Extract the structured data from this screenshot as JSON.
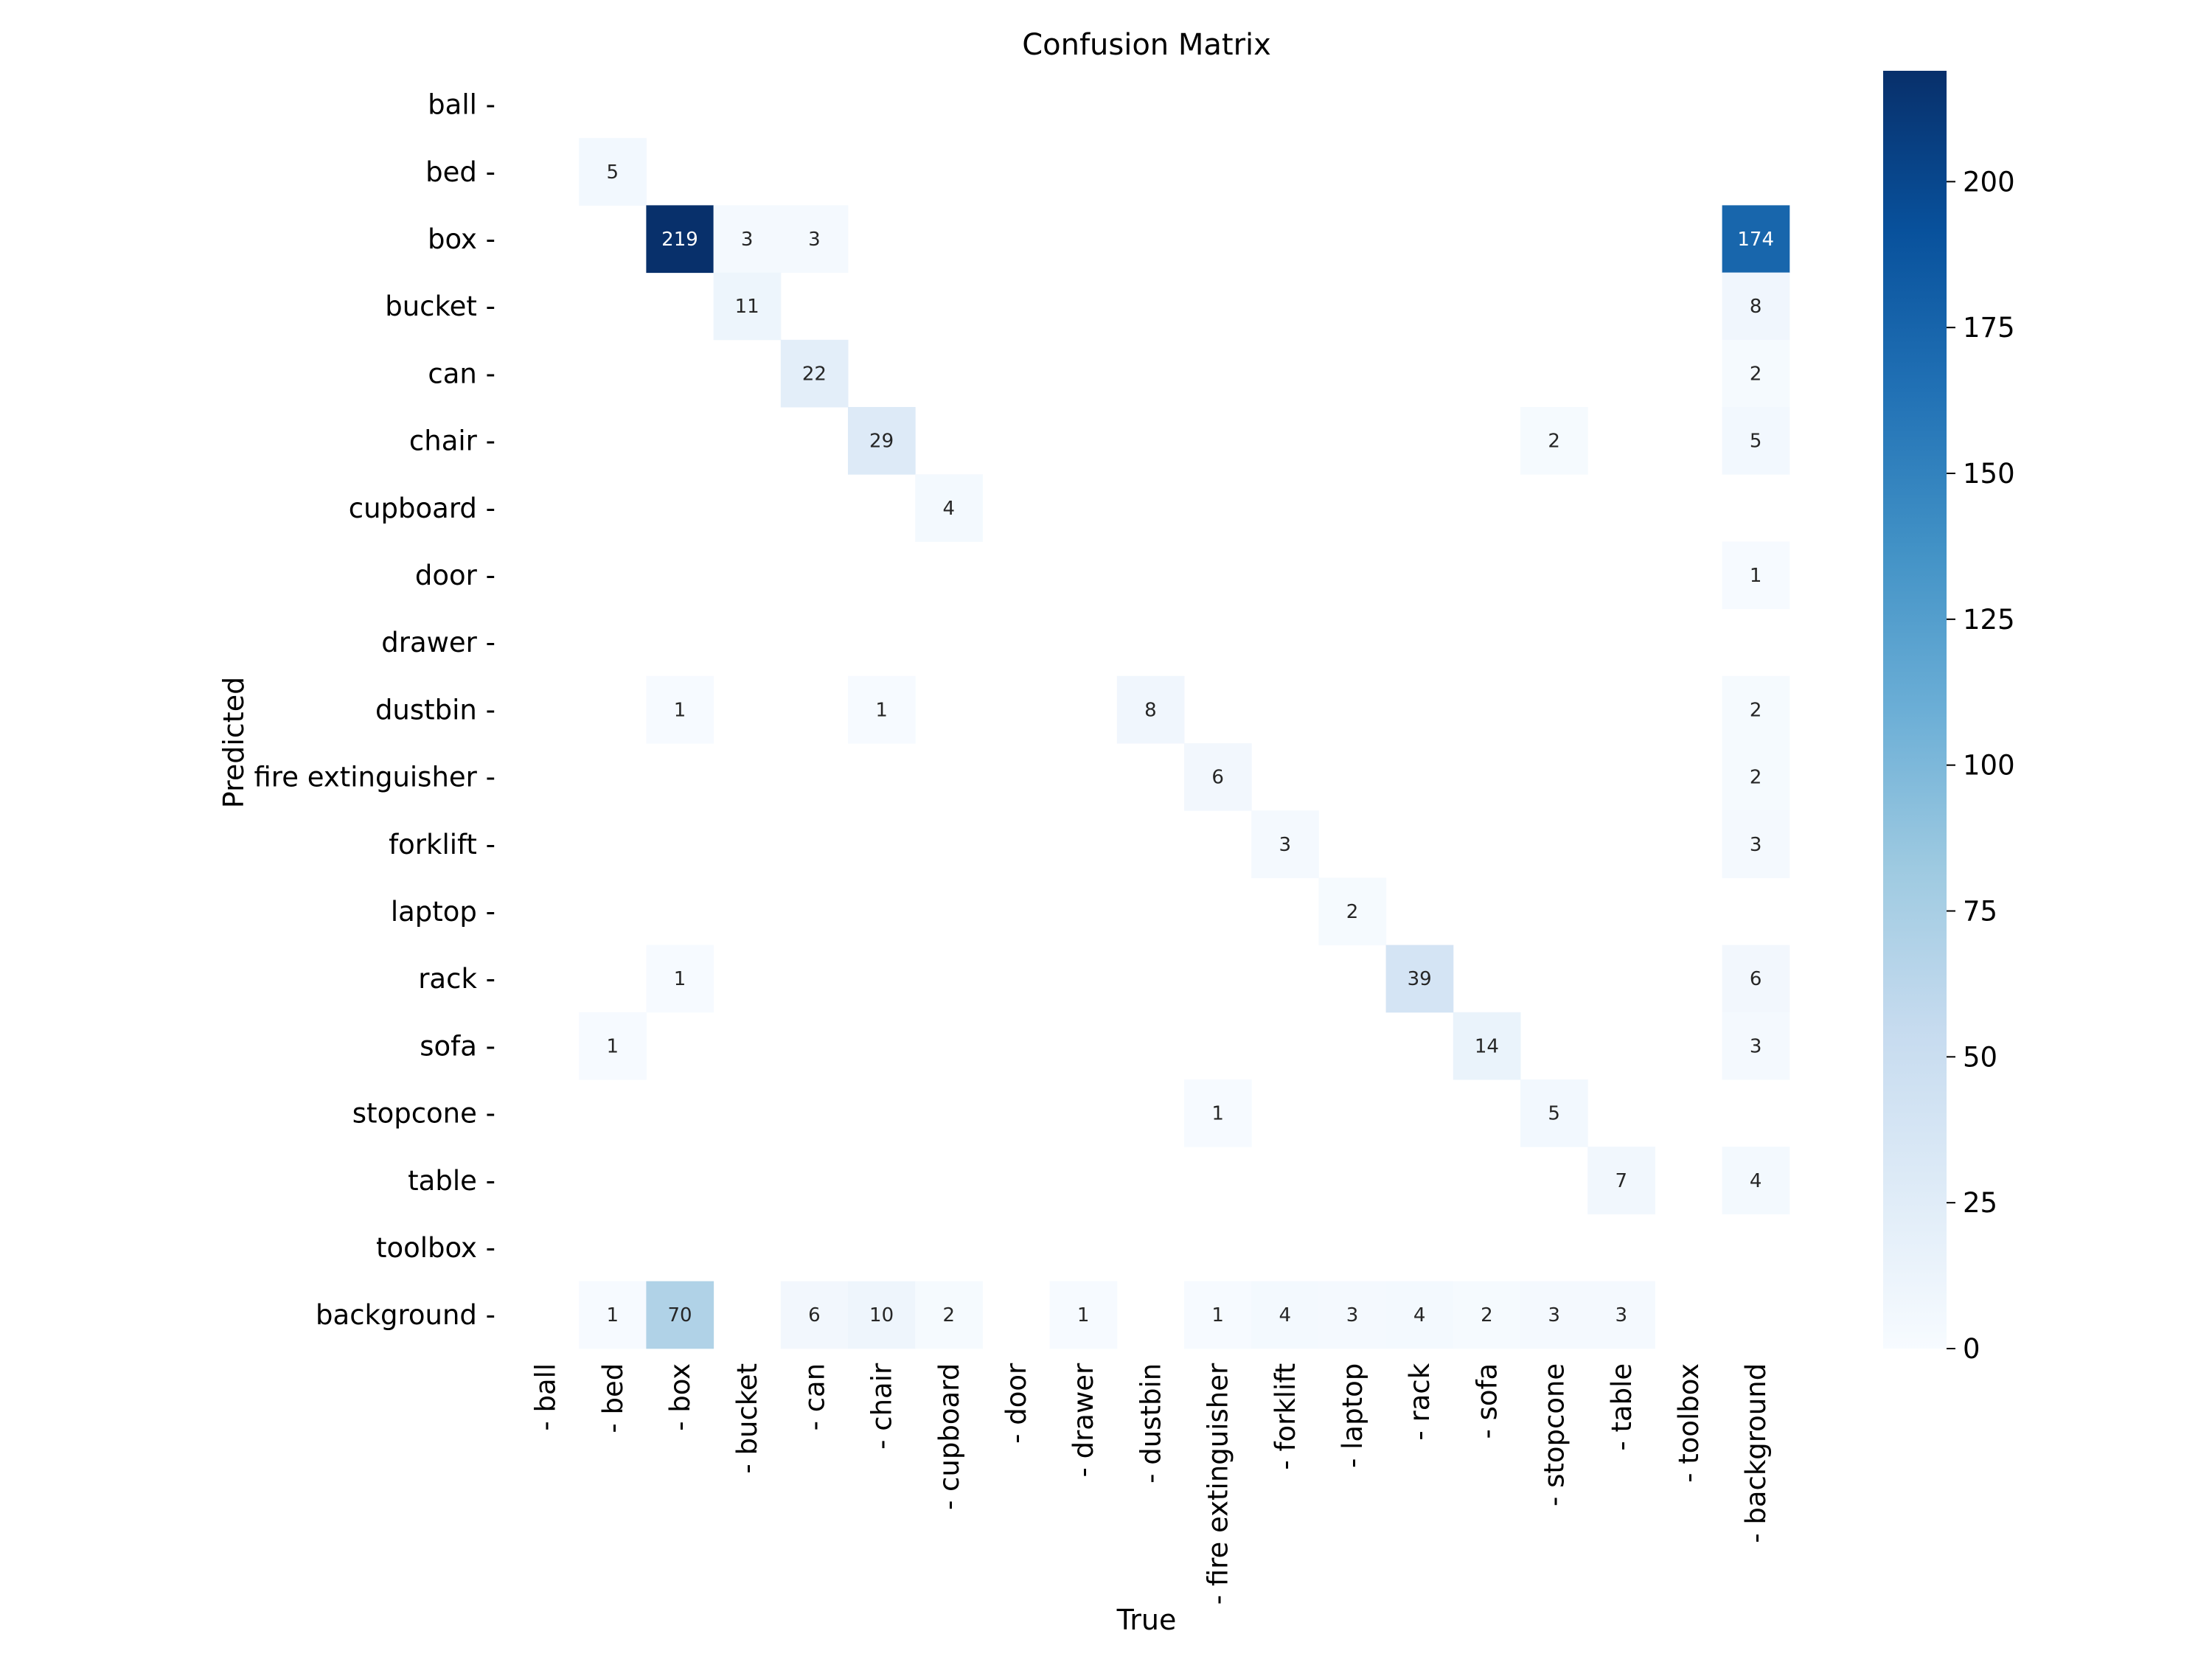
{
  "chart_data": {
    "type": "heatmap",
    "title": "Confusion Matrix",
    "xlabel": "True",
    "ylabel": "Predicted",
    "x_categories": [
      "ball",
      "bed",
      "box",
      "bucket",
      "can",
      "chair",
      "cupboard",
      "door",
      "drawer",
      "dustbin",
      "fire extinguisher",
      "forklift",
      "laptop",
      "rack",
      "sofa",
      "stopcone",
      "table",
      "toolbox",
      "background"
    ],
    "y_categories": [
      "ball",
      "bed",
      "box",
      "bucket",
      "can",
      "chair",
      "cupboard",
      "door",
      "drawer",
      "dustbin",
      "fire extinguisher",
      "forklift",
      "laptop",
      "rack",
      "sofa",
      "stopcone",
      "table",
      "toolbox",
      "background"
    ],
    "values": [
      [
        0,
        0,
        0,
        0,
        0,
        0,
        0,
        0,
        0,
        0,
        0,
        0,
        0,
        0,
        0,
        0,
        0,
        0,
        0
      ],
      [
        0,
        5,
        0,
        0,
        0,
        0,
        0,
        0,
        0,
        0,
        0,
        0,
        0,
        0,
        0,
        0,
        0,
        0,
        0
      ],
      [
        0,
        0,
        219,
        3,
        3,
        0,
        0,
        0,
        0,
        0,
        0,
        0,
        0,
        0,
        0,
        0,
        0,
        0,
        174
      ],
      [
        0,
        0,
        0,
        11,
        0,
        0,
        0,
        0,
        0,
        0,
        0,
        0,
        0,
        0,
        0,
        0,
        0,
        0,
        8
      ],
      [
        0,
        0,
        0,
        0,
        22,
        0,
        0,
        0,
        0,
        0,
        0,
        0,
        0,
        0,
        0,
        0,
        0,
        0,
        2
      ],
      [
        0,
        0,
        0,
        0,
        0,
        29,
        0,
        0,
        0,
        0,
        0,
        0,
        0,
        0,
        0,
        2,
        0,
        0,
        5
      ],
      [
        0,
        0,
        0,
        0,
        0,
        0,
        4,
        0,
        0,
        0,
        0,
        0,
        0,
        0,
        0,
        0,
        0,
        0,
        0
      ],
      [
        0,
        0,
        0,
        0,
        0,
        0,
        0,
        0,
        0,
        0,
        0,
        0,
        0,
        0,
        0,
        0,
        0,
        0,
        1
      ],
      [
        0,
        0,
        0,
        0,
        0,
        0,
        0,
        0,
        0,
        0,
        0,
        0,
        0,
        0,
        0,
        0,
        0,
        0,
        0
      ],
      [
        0,
        0,
        1,
        0,
        0,
        1,
        0,
        0,
        0,
        8,
        0,
        0,
        0,
        0,
        0,
        0,
        0,
        0,
        2
      ],
      [
        0,
        0,
        0,
        0,
        0,
        0,
        0,
        0,
        0,
        0,
        6,
        0,
        0,
        0,
        0,
        0,
        0,
        0,
        2
      ],
      [
        0,
        0,
        0,
        0,
        0,
        0,
        0,
        0,
        0,
        0,
        0,
        3,
        0,
        0,
        0,
        0,
        0,
        0,
        3
      ],
      [
        0,
        0,
        0,
        0,
        0,
        0,
        0,
        0,
        0,
        0,
        0,
        0,
        2,
        0,
        0,
        0,
        0,
        0,
        0
      ],
      [
        0,
        0,
        1,
        0,
        0,
        0,
        0,
        0,
        0,
        0,
        0,
        0,
        0,
        39,
        0,
        0,
        0,
        0,
        6
      ],
      [
        0,
        1,
        0,
        0,
        0,
        0,
        0,
        0,
        0,
        0,
        0,
        0,
        0,
        0,
        14,
        0,
        0,
        0,
        3
      ],
      [
        0,
        0,
        0,
        0,
        0,
        0,
        0,
        0,
        0,
        0,
        1,
        0,
        0,
        0,
        0,
        5,
        0,
        0,
        0
      ],
      [
        0,
        0,
        0,
        0,
        0,
        0,
        0,
        0,
        0,
        0,
        0,
        0,
        0,
        0,
        0,
        0,
        7,
        0,
        4
      ],
      [
        0,
        0,
        0,
        0,
        0,
        0,
        0,
        0,
        0,
        0,
        0,
        0,
        0,
        0,
        0,
        0,
        0,
        0,
        0
      ],
      [
        0,
        1,
        70,
        0,
        6,
        10,
        2,
        0,
        1,
        0,
        1,
        4,
        3,
        4,
        2,
        3,
        3,
        0,
        0
      ]
    ],
    "zero_cells_blank": true,
    "colormap": "Blues",
    "colorbar": {
      "range": [
        0,
        219
      ],
      "ticks": [
        0,
        25,
        50,
        75,
        100,
        125,
        150,
        175,
        200
      ]
    }
  }
}
